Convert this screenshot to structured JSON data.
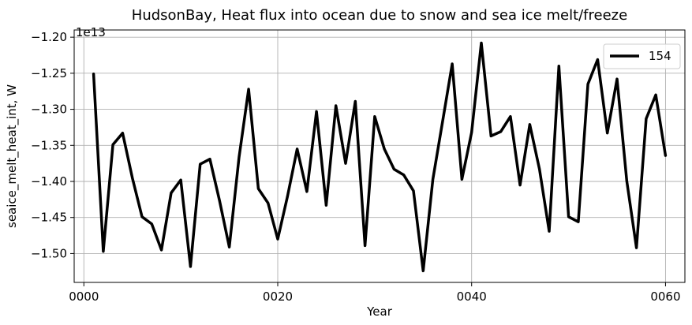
{
  "chart_data": {
    "type": "line",
    "title": "HudsonBay, Heat flux into ocean due to snow and sea ice melt/freeze",
    "xlabel": "Year",
    "ylabel": "seaice_melt_heat_int, W",
    "offset_label": "1e13",
    "xlim": [
      -1,
      62
    ],
    "ylim": [
      -1.54,
      -1.19
    ],
    "xticks": [
      0,
      20,
      40,
      60
    ],
    "xtick_labels": [
      "0000",
      "0020",
      "0040",
      "0060"
    ],
    "yticks": [
      -1.5,
      -1.45,
      -1.4,
      -1.35,
      -1.3,
      -1.25,
      -1.2
    ],
    "ytick_labels": [
      "−1.50",
      "−1.45",
      "−1.40",
      "−1.35",
      "−1.30",
      "−1.25",
      "−1.20"
    ],
    "grid": true,
    "legend_placement": "top-right",
    "series": [
      {
        "name": "154",
        "color": "#000000",
        "x": [
          1,
          2,
          3,
          4,
          5,
          6,
          7,
          8,
          9,
          10,
          11,
          12,
          13,
          14,
          15,
          16,
          17,
          18,
          19,
          20,
          21,
          22,
          23,
          24,
          25,
          26,
          27,
          28,
          29,
          30,
          31,
          32,
          33,
          34,
          35,
          36,
          37,
          38,
          39,
          40,
          41,
          42,
          43,
          44,
          45,
          46,
          47,
          48,
          49,
          50,
          51,
          52,
          53,
          54,
          55,
          56,
          57,
          58,
          59,
          60
        ],
        "values": [
          -1.251,
          -1.497,
          -1.349,
          -1.333,
          -1.395,
          -1.449,
          -1.459,
          -1.495,
          -1.416,
          -1.398,
          -1.518,
          -1.376,
          -1.369,
          -1.427,
          -1.491,
          -1.367,
          -1.272,
          -1.41,
          -1.43,
          -1.48,
          -1.421,
          -1.355,
          -1.414,
          -1.303,
          -1.433,
          -1.295,
          -1.375,
          -1.289,
          -1.489,
          -1.31,
          -1.355,
          -1.383,
          -1.391,
          -1.413,
          -1.524,
          -1.397,
          -1.317,
          -1.237,
          -1.397,
          -1.332,
          -1.208,
          -1.337,
          -1.331,
          -1.31,
          -1.405,
          -1.321,
          -1.383,
          -1.469,
          -1.24,
          -1.449,
          -1.456,
          -1.265,
          -1.231,
          -1.333,
          -1.258,
          -1.399,
          -1.492,
          -1.313,
          -1.28,
          -1.364
        ]
      }
    ]
  }
}
